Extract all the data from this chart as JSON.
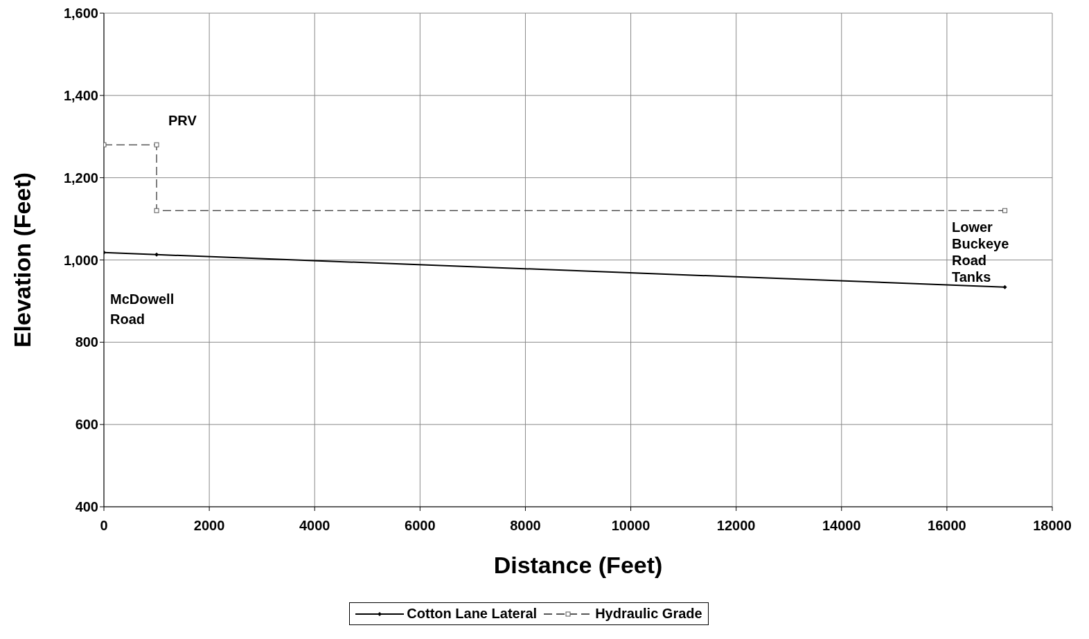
{
  "chart_data": {
    "type": "line",
    "xlabel": "Distance (Feet)",
    "ylabel": "Elevation (Feet)",
    "xlim": [
      0,
      18000
    ],
    "xticks": [
      0,
      2000,
      4000,
      6000,
      8000,
      10000,
      12000,
      14000,
      16000,
      18000
    ],
    "ylim": [
      400,
      1600
    ],
    "yticks": [
      {
        "value": 400,
        "label": "400"
      },
      {
        "value": 600,
        "label": "600"
      },
      {
        "value": 800,
        "label": "800"
      },
      {
        "value": 1000,
        "label": "1,000"
      },
      {
        "value": 1200,
        "label": "1,200"
      },
      {
        "value": 1400,
        "label": "1,400"
      },
      {
        "value": 1600,
        "label": "1,600"
      }
    ],
    "grid": true,
    "legend": "bottom",
    "series": [
      {
        "name": "Cotton Lane Lateral",
        "color": "#000000",
        "x": [
          0,
          1000,
          17100
        ],
        "values": [
          1018,
          1013,
          934
        ],
        "marker": "diamond",
        "line_style": "solid"
      },
      {
        "name": "Hydraulic Grade",
        "color": "#555555",
        "x": [
          0,
          1000,
          1000,
          17100
        ],
        "values": [
          1280,
          1280,
          1120,
          1120
        ],
        "marker": "square",
        "line_style": "dashed"
      }
    ],
    "annotations": [
      "PRV",
      "McDowell Road",
      "Lower Buckeye Road Tanks"
    ]
  }
}
